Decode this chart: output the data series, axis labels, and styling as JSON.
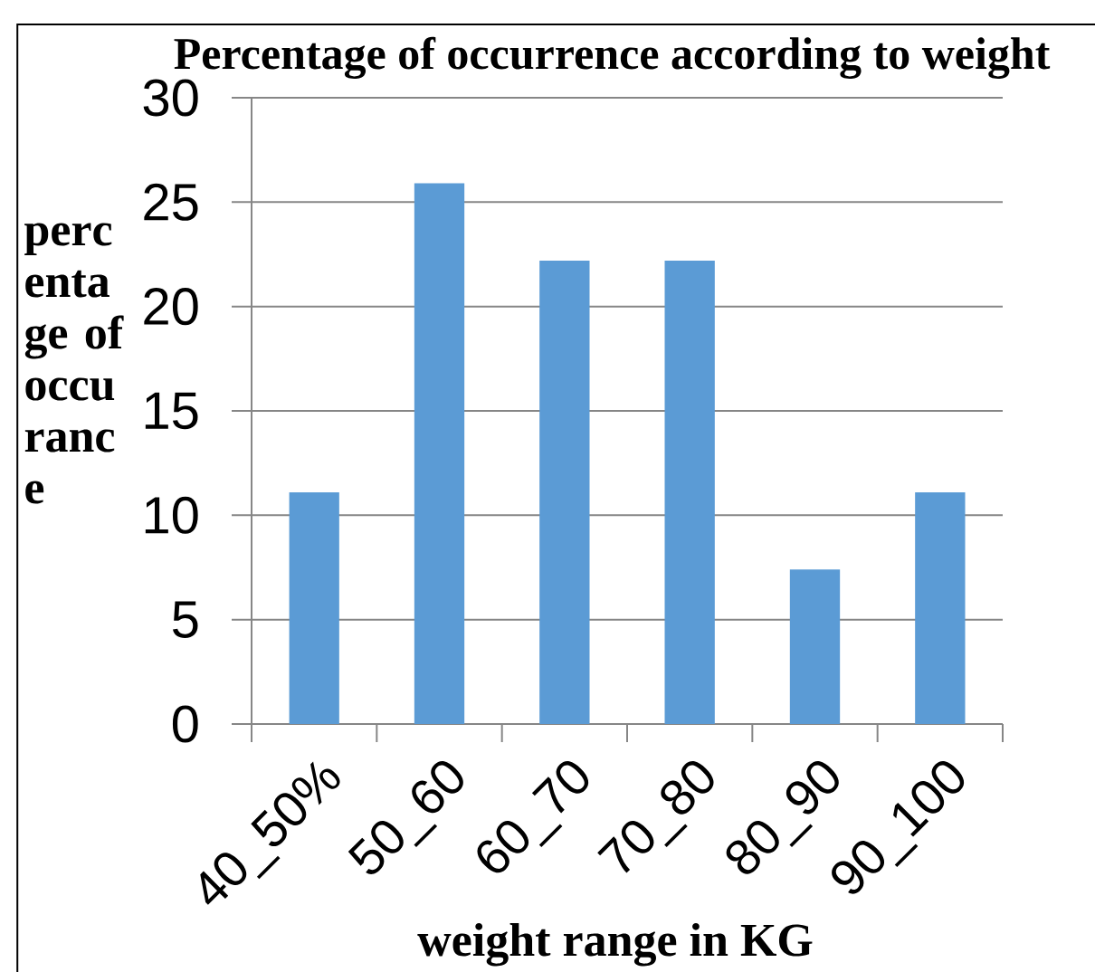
{
  "chart_data": {
    "type": "bar",
    "title": "Percentage of occurrence according to weight",
    "xlabel": "weight range in KG",
    "ylabel": "percentage of occurance",
    "categories": [
      "40_50%",
      "50_60",
      "60_70",
      "70_80",
      "80_90",
      "90_100"
    ],
    "values": [
      11.1,
      25.9,
      22.2,
      22.2,
      7.4,
      11.1
    ],
    "color": "#5b9bd5",
    "ylim": [
      0,
      30
    ],
    "yticks": [
      0,
      5,
      10,
      15,
      20,
      25,
      30
    ],
    "grid": "y"
  }
}
